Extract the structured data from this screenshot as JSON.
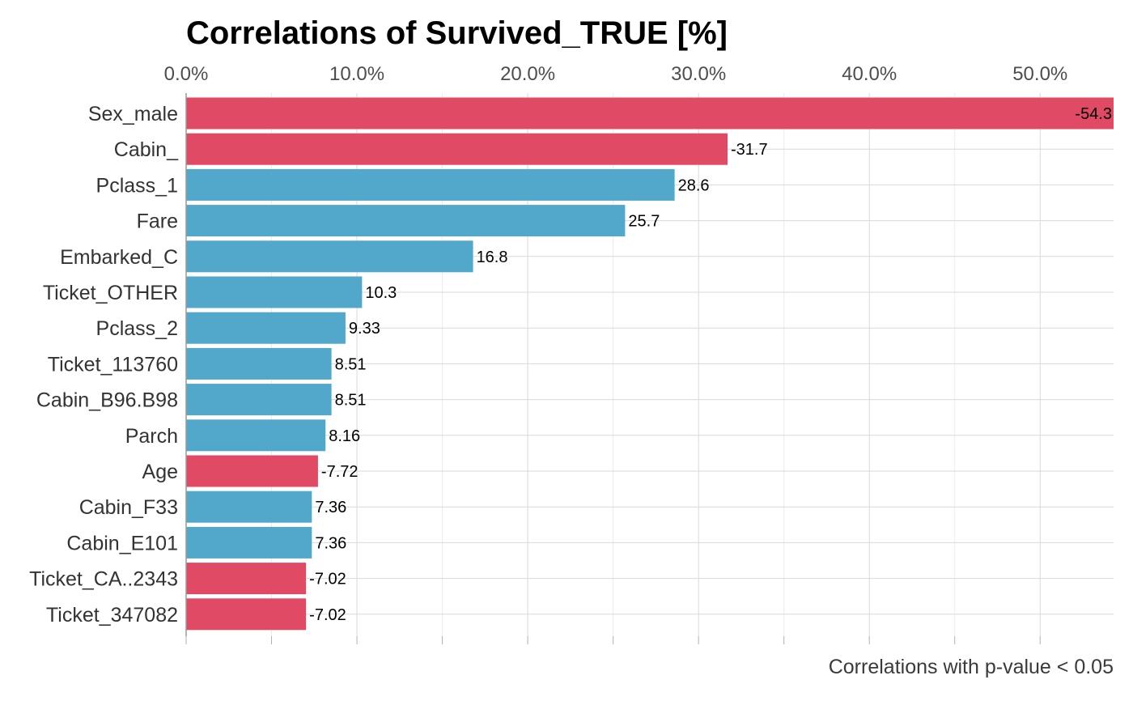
{
  "chart_data": {
    "type": "bar",
    "orientation": "horizontal",
    "title": "Correlations of Survived_TRUE [%]",
    "caption": "Correlations with p-value < 0.05",
    "xlim": [
      0,
      54.3
    ],
    "xticks": [
      0,
      10,
      20,
      30,
      40,
      50
    ],
    "xtick_labels": [
      "0.0%",
      "10.0%",
      "20.0%",
      "30.0%",
      "40.0%",
      "50.0%"
    ],
    "x_axis_position": "top",
    "grid": true,
    "categories": [
      "Sex_male",
      "Cabin_",
      "Pclass_1",
      "Fare",
      "Embarked_C",
      "Ticket_OTHER",
      "Pclass_2",
      "Ticket_113760",
      "Cabin_B96.B98",
      "Parch",
      "Age",
      "Cabin_F33",
      "Cabin_E101",
      "Ticket_CA..2343",
      "Ticket_347082"
    ],
    "values": [
      -54.3,
      -31.7,
      28.6,
      25.7,
      16.8,
      10.3,
      9.33,
      8.51,
      8.51,
      8.16,
      -7.72,
      7.36,
      7.36,
      -7.02,
      -7.02
    ],
    "value_labels": [
      "-54.3",
      "-31.7",
      "28.6",
      "25.7",
      "16.8",
      "10.3",
      "9.33",
      "8.51",
      "8.51",
      "8.16",
      "-7.72",
      "7.36",
      "7.36",
      "-7.02",
      "-7.02"
    ],
    "colors": {
      "positive": "#51a8cb",
      "negative": "#e04a64",
      "grid_major": "#d9d9d9",
      "grid_minor": "#ececec",
      "axis": "#9a9a9a"
    }
  }
}
